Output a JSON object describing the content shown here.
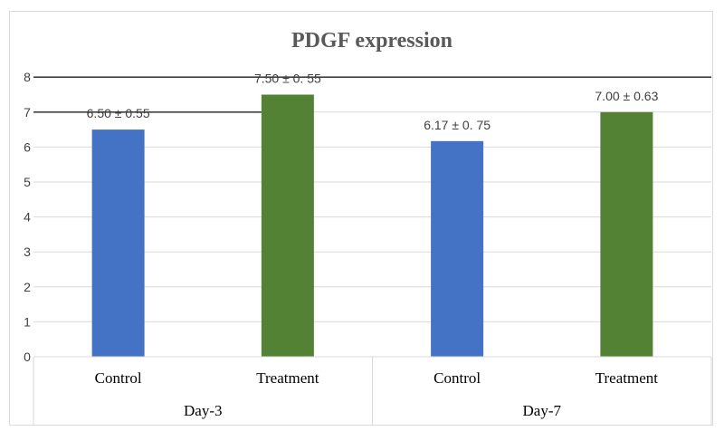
{
  "chart_data": {
    "type": "bar",
    "title": "PDGF expression",
    "xlabel": "",
    "ylabel": "",
    "ylim": [
      0,
      8
    ],
    "yticks": [
      "0",
      "1",
      "2",
      "3",
      "4",
      "5",
      "6",
      "7",
      "8"
    ],
    "groups": [
      {
        "label": "Day-3",
        "categories": [
          "Control",
          "Treatment"
        ]
      },
      {
        "label": "Day-7",
        "categories": [
          "Control",
          "Treatment"
        ]
      }
    ],
    "bars": [
      {
        "category": "Control",
        "group": "Day-3",
        "value": 6.5,
        "label": "6.50 ± 0.55",
        "color": "#4472c4"
      },
      {
        "category": "Treatment",
        "group": "Day-3",
        "value": 7.5,
        "label": "7.50 ± 0. 55",
        "color": "#548235"
      },
      {
        "category": "Control",
        "group": "Day-7",
        "value": 6.17,
        "label": "6.17 ± 0. 75",
        "color": "#4472c4"
      },
      {
        "category": "Treatment",
        "group": "Day-7",
        "value": 7.0,
        "label": "7.00 ± 0.63",
        "color": "#548235"
      }
    ],
    "gridlines": true,
    "legend": "none",
    "annotations": [
      {
        "type": "hline",
        "y": 8,
        "color": "#404040"
      },
      {
        "type": "hline",
        "y": 7,
        "color": "#404040",
        "x_end_category": "Treatment",
        "x_end_group": "Day-3"
      }
    ]
  }
}
